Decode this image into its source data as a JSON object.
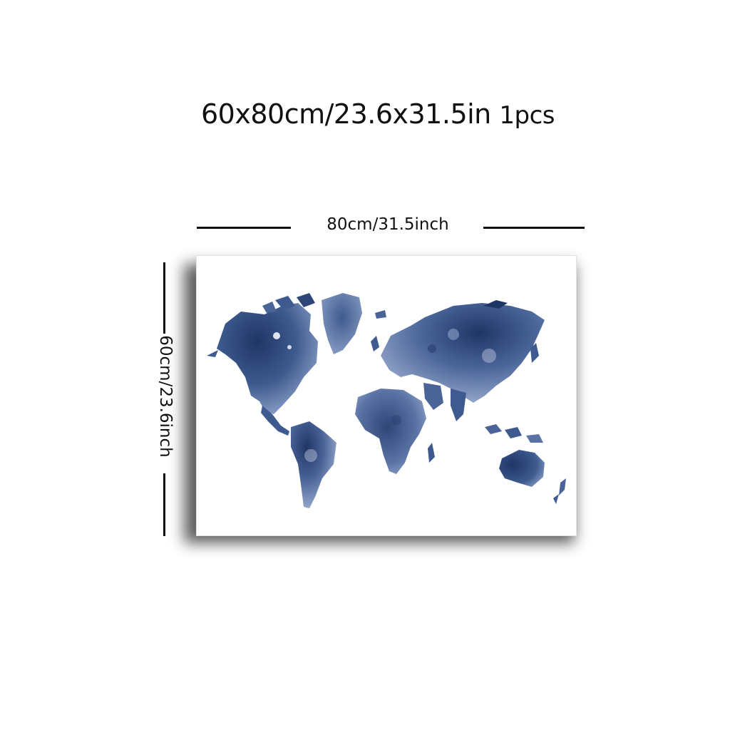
{
  "header": {
    "size_text": "60x80cm/23.6x31.5in",
    "quantity_text": "1pcs"
  },
  "dimensions": {
    "width_label": "80cm/31.5inch",
    "height_label": "60cm/23.6inch"
  },
  "artwork": {
    "subject": "world-map",
    "style": "watercolor",
    "colors": {
      "dark": "#1f3566",
      "mid": "#3e5a8e",
      "light": "#8ea2c9",
      "pale": "#c3cde3",
      "canvas": "#ffffff"
    }
  }
}
